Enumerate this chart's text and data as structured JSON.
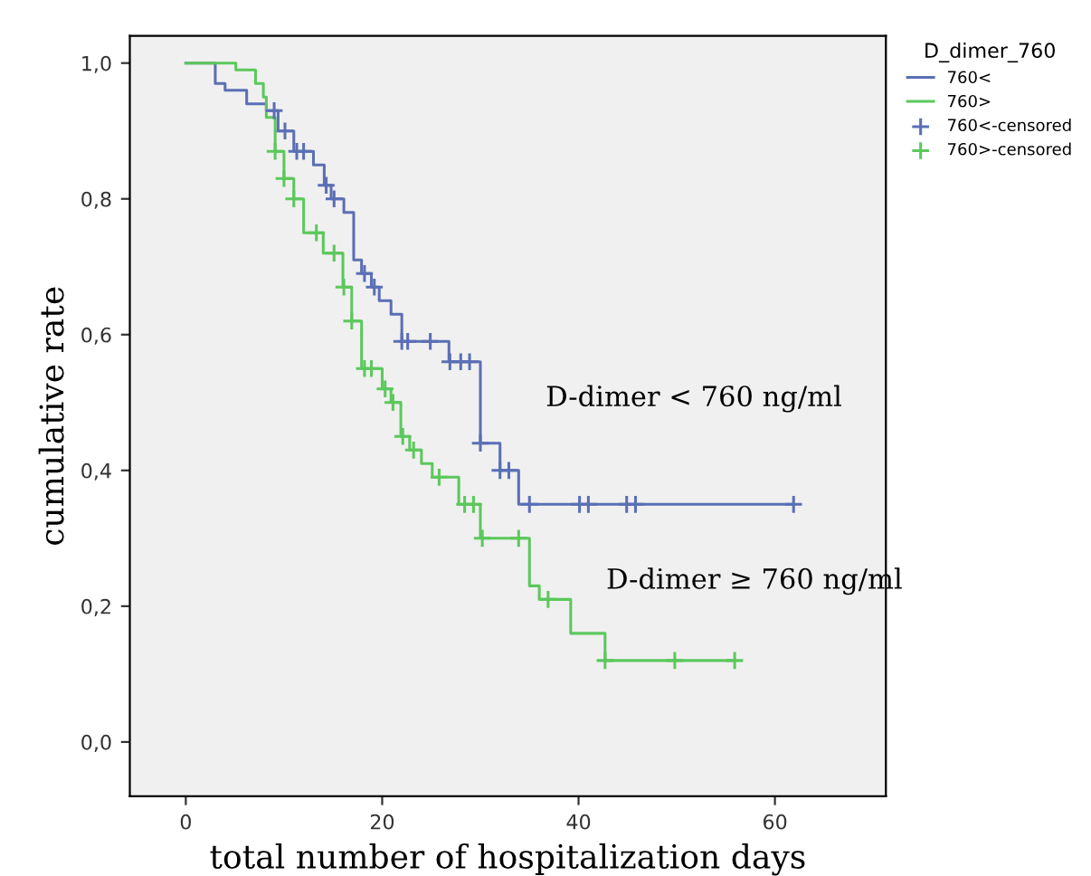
{
  "chart_data": {
    "type": "step",
    "xlabel": "total number of hospitalization days",
    "ylabel": "cumulative rate",
    "legend_title": "D_dimer_760",
    "xlim": [
      -5.7,
      71.3
    ],
    "xticks": [
      0,
      20,
      40,
      60
    ],
    "ylim": [
      -0.08,
      1.04
    ],
    "yticks": [
      {
        "value": 0,
        "label": "0,0"
      },
      {
        "value": 0.2,
        "label": "0,2"
      },
      {
        "value": 0.4,
        "label": "0,4"
      },
      {
        "value": 0.6,
        "label": "0,6"
      },
      {
        "value": 0.8,
        "label": "0,8"
      },
      {
        "value": 1.0,
        "label": "1,0"
      }
    ],
    "grid": false,
    "legend": "right",
    "series": [
      {
        "name": "760<",
        "color": "#5b6fb5",
        "x": [
          0,
          3.0,
          4.0,
          6.2,
          8.2,
          9.4,
          11.0,
          13.0,
          14.1,
          14.8,
          16.1,
          17.1,
          17.9,
          18.9,
          19.7,
          20.9,
          22.0,
          26.8,
          30.0,
          32.0,
          33.9,
          61.9
        ],
        "values": [
          1.0,
          0.97,
          0.96,
          0.94,
          0.93,
          0.9,
          0.87,
          0.85,
          0.82,
          0.8,
          0.78,
          0.71,
          0.69,
          0.67,
          0.65,
          0.63,
          0.59,
          0.56,
          0.44,
          0.4,
          0.35,
          0.35
        ]
      },
      {
        "name": "760>",
        "color": "#5cc85c",
        "x": [
          0,
          5.1,
          7.1,
          7.9,
          8.2,
          9.1,
          10.0,
          11.0,
          12.0,
          14.0,
          16.0,
          16.9,
          17.9,
          20.0,
          20.9,
          21.9,
          22.8,
          24.0,
          25.1,
          27.8,
          30.0,
          35.0,
          36.0,
          39.2,
          42.7,
          55.9
        ],
        "values": [
          1.0,
          0.99,
          0.97,
          0.95,
          0.92,
          0.87,
          0.83,
          0.8,
          0.75,
          0.72,
          0.67,
          0.62,
          0.55,
          0.52,
          0.5,
          0.45,
          0.43,
          0.41,
          0.39,
          0.35,
          0.3,
          0.23,
          0.21,
          0.16,
          0.12,
          0.12
        ]
      },
      {
        "name": "760<-censored",
        "type": "scatter",
        "marker": "cross",
        "color": "#5b6fb5",
        "x": [
          9.0,
          10.1,
          11.3,
          12.0,
          14.3,
          15.1,
          18.2,
          19.2,
          22.0,
          22.6,
          24.9,
          26.9,
          28.0,
          28.9,
          30.0,
          32.0,
          32.9,
          35.0,
          40.1,
          41.0,
          44.9,
          45.8,
          61.9
        ],
        "values": [
          0.93,
          0.9,
          0.87,
          0.87,
          0.82,
          0.8,
          0.69,
          0.67,
          0.59,
          0.59,
          0.59,
          0.56,
          0.56,
          0.56,
          0.44,
          0.4,
          0.4,
          0.35,
          0.35,
          0.35,
          0.35,
          0.35,
          0.35
        ]
      },
      {
        "name": "760>-censored",
        "type": "scatter",
        "marker": "cross",
        "color": "#5cc85c",
        "x": [
          9.1,
          10.0,
          11.0,
          13.3,
          15.1,
          16.1,
          16.9,
          18.2,
          18.9,
          20.3,
          21.1,
          22.1,
          23.2,
          25.8,
          28.4,
          29.3,
          30.2,
          33.9,
          36.9,
          42.7,
          49.8,
          55.9
        ],
        "values": [
          0.87,
          0.83,
          0.8,
          0.75,
          0.72,
          0.67,
          0.62,
          0.55,
          0.55,
          0.52,
          0.5,
          0.45,
          0.43,
          0.39,
          0.35,
          0.35,
          0.3,
          0.3,
          0.21,
          0.12,
          0.12,
          0.12
        ]
      }
    ],
    "annotations": [
      "D-dimer < 760 ng/ml",
      "D-dimer ≥ 760 ng/ml"
    ]
  }
}
